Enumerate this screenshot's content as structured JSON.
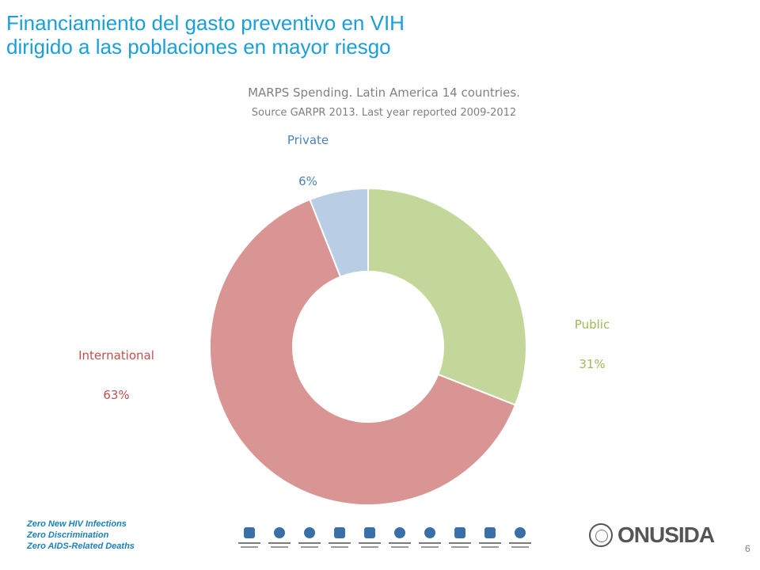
{
  "slide": {
    "title_line1": "Financiamiento del gasto preventivo en VIH",
    "title_line2": "dirigido a las poblaciones en mayor riesgo",
    "page_number": "6"
  },
  "chart_data": {
    "type": "pie",
    "donut": true,
    "title": "MARPS Spending. Latin America 14 countries.",
    "subtitle": "Source GARPR 2013. Last year reported 2009-2012",
    "slices": [
      {
        "label": "Public",
        "value": 31,
        "display": "31%",
        "color": "#c4d79b",
        "label_color": "#9bbb59"
      },
      {
        "label": "International",
        "value": 63,
        "display": "63%",
        "color": "#d99594",
        "label_color": "#c0504d"
      },
      {
        "label": "Private",
        "value": 6,
        "display": "6%",
        "color": "#b9cde5",
        "label_color": "#4f81bd"
      }
    ]
  },
  "footer": {
    "taglines": [
      "Zero New HIV Infections",
      "Zero Discrimination",
      "Zero AIDS-Related  Deaths"
    ],
    "goal_icons": [
      "transmission-icon",
      "drug-users-icon",
      "children-icon",
      "treatment-icon",
      "tb-icon",
      "resource-gap-icon",
      "gender-icon",
      "stigma-icon",
      "travel-restrictions-icon",
      "integration-icon"
    ],
    "logo_text": "ONUSIDA"
  }
}
